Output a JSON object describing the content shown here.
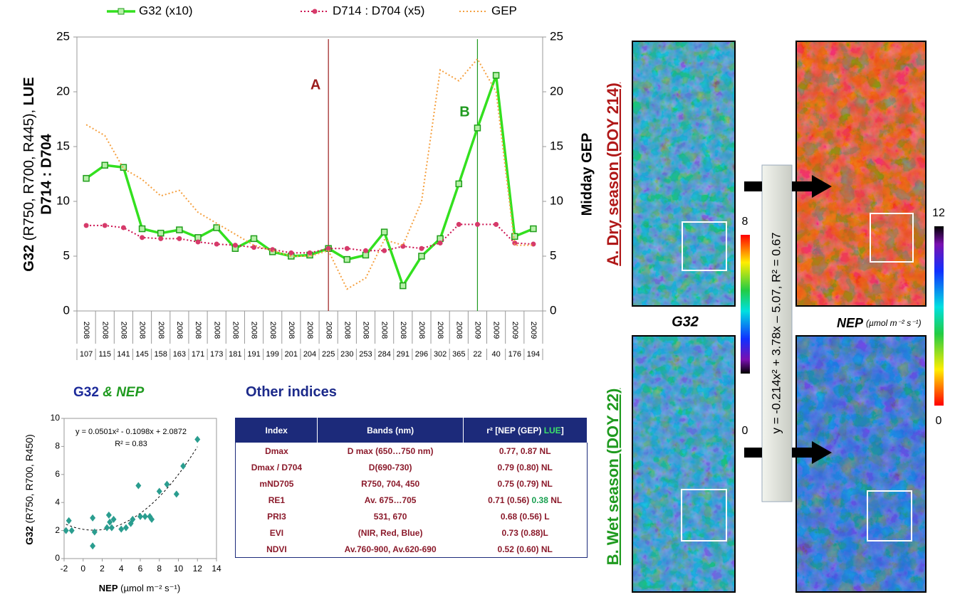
{
  "chart_data": [
    {
      "type": "line",
      "legend": true,
      "categories": [
        "107",
        "115",
        "141",
        "145",
        "158",
        "163",
        "171",
        "173",
        "181",
        "191",
        "199",
        "201",
        "204",
        "225",
        "230",
        "253",
        "284",
        "291",
        "296",
        "302",
        "365",
        "22",
        "40",
        "176",
        "194"
      ],
      "category_groups": [
        "2008",
        "2008",
        "2008",
        "2008",
        "2008",
        "2008",
        "2008",
        "2008",
        "2008",
        "2008",
        "2008",
        "2008",
        "2008",
        "2008",
        "2008",
        "2008",
        "2008",
        "2008",
        "2008",
        "2008",
        "2008",
        "2009",
        "2009",
        "2009",
        "2009"
      ],
      "series": [
        {
          "name": "G32 (x10)",
          "color": "#33e01f",
          "marker": "square",
          "marker_color": "#1f9e1a",
          "dash": "solid",
          "values": [
            12.1,
            13.3,
            13.1,
            7.5,
            7.1,
            7.4,
            6.7,
            7.6,
            5.7,
            6.6,
            5.4,
            5.0,
            5.1,
            5.7,
            4.7,
            5.1,
            7.2,
            2.3,
            5.0,
            6.6,
            11.6,
            16.7,
            21.5,
            6.8,
            7.5
          ]
        },
        {
          "name": "D714 : D704 (x5)",
          "color": "#cc1150",
          "marker": "circle",
          "marker_color": "#d63a6a",
          "dash": "dotted",
          "values": [
            7.8,
            7.8,
            7.6,
            6.7,
            6.6,
            6.6,
            6.3,
            6.1,
            6.0,
            5.8,
            5.6,
            5.3,
            5.3,
            5.7,
            5.7,
            5.5,
            5.5,
            5.9,
            5.7,
            6.2,
            7.9,
            7.9,
            7.9,
            6.2,
            6.1
          ]
        },
        {
          "name": "GEP",
          "color": "#f5a040",
          "marker": null,
          "dash": "dotted",
          "axis": "y2",
          "values": [
            17,
            16,
            13,
            12,
            10.5,
            11,
            9,
            8,
            7,
            6,
            5.5,
            5,
            5,
            5.5,
            2,
            3,
            6.5,
            6,
            10,
            22,
            21,
            23,
            20,
            6,
            6
          ]
        }
      ],
      "ylim": [
        0,
        25
      ],
      "yticks": [
        0,
        5,
        10,
        15,
        20,
        25
      ],
      "y2lim": [
        0,
        25
      ],
      "y2ticks": [
        0,
        5,
        10,
        15,
        20,
        25
      ],
      "y_label_parts": [
        "G32",
        " (R750, R700, R445), ",
        "LUE"
      ],
      "y_label_line2": "D714 : D704",
      "y2_label": "Midday GEP",
      "annotations": [
        {
          "text": "A",
          "at": "225",
          "color": "#9b1c1c"
        },
        {
          "text": "B",
          "at": "22",
          "color": "#1f9a1f"
        }
      ]
    },
    {
      "type": "scatter",
      "title_parts": [
        "G32",
        " & NEP"
      ],
      "x": [
        -1.8,
        -1.5,
        -1.2,
        1.0,
        1.0,
        1.2,
        2.5,
        2.7,
        2.8,
        3.0,
        3.2,
        4.0,
        4.5,
        5.0,
        5.2,
        5.8,
        6.0,
        6.5,
        7.0,
        7.2,
        8.0,
        8.8,
        9.8,
        10.5,
        12.0
      ],
      "values": [
        2.0,
        2.7,
        2.0,
        2.9,
        0.9,
        1.9,
        2.2,
        3.1,
        2.6,
        2.2,
        2.8,
        2.1,
        2.2,
        2.5,
        2.8,
        5.2,
        3.0,
        3.0,
        3.0,
        2.8,
        4.8,
        5.3,
        4.6,
        6.6,
        8.5
      ],
      "color": "#2a9d8f",
      "xlim": [
        -2,
        14
      ],
      "xticks": [
        -2,
        0,
        2,
        4,
        6,
        8,
        10,
        12,
        14
      ],
      "ylim": [
        0,
        10
      ],
      "yticks": [
        0,
        2,
        4,
        6,
        8,
        10
      ],
      "x_label_parts": [
        "NEP",
        " (µmol m⁻² s⁻¹)"
      ],
      "y_label_parts": [
        "G32",
        " (R750,  R700,  R450)"
      ],
      "fit": {
        "a": 0.0501,
        "b": -0.1098,
        "c": 2.0872
      },
      "equation": "y = 0.0501x² - 0.1098x + 2.0872",
      "r2": "R² = 0.83"
    }
  ],
  "table": {
    "title": "Other indices",
    "header": [
      "Index",
      "Bands (nm)",
      [
        "r² [NEP (GEP) ",
        "LUE",
        "]"
      ]
    ],
    "rows": [
      [
        "Dmax",
        "D max (650…750 nm)",
        "0.77, 0.87 NL"
      ],
      [
        "Dmax / D704",
        "D(690-730)",
        "0.79 (0.80) NL"
      ],
      [
        "mND705",
        "R750, 704, 450",
        "0.75 (0.79) NL"
      ],
      [
        "RE1",
        "Av. 675…705",
        [
          "0.71 (0.56) ",
          "0.38",
          " NL"
        ]
      ],
      [
        "PRI3",
        "531, 670",
        "0.68 (0.56) L"
      ],
      [
        "EVI",
        "(NIR, Red, Blue)",
        "0.73 (0.88)L"
      ],
      [
        "NDVI",
        "Av.760-900, Av.620-690",
        "0.52 (0.60) NL"
      ]
    ]
  },
  "maps": {
    "dry_label": "A. Dry season (DOY 214)",
    "wet_label": "B. Wet season (DOY 22)",
    "g32_title": "G32",
    "nep_title": "NEP",
    "nep_unit": "(µmol m⁻² s⁻¹)",
    "g32_scale": {
      "max": 8,
      "min": 0
    },
    "nep_scale": {
      "max": 12,
      "min": 0
    },
    "equation": "y = -0.214x² + 3.78x – 5.07, R² = 0.67"
  }
}
